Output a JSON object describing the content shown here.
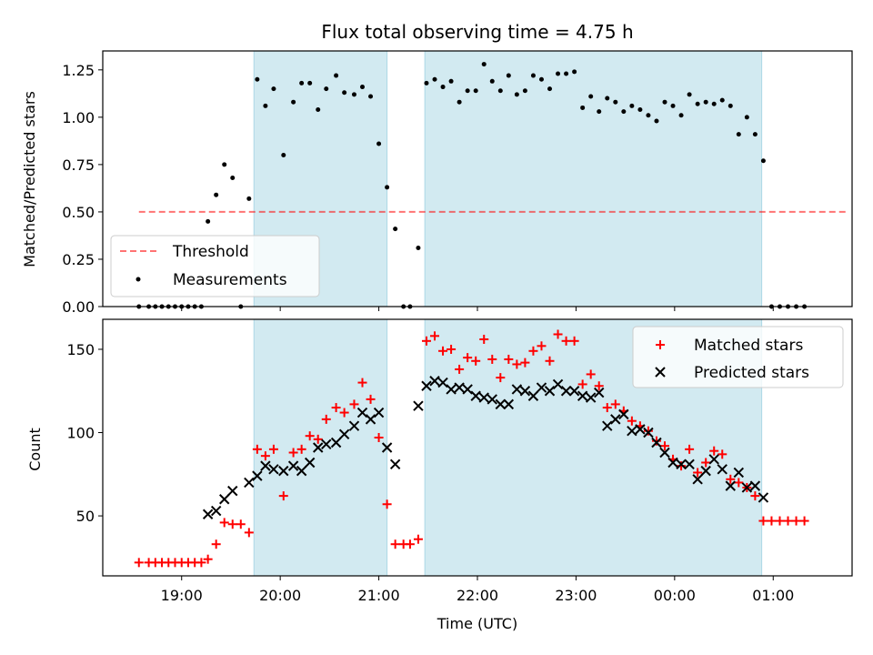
{
  "figure": {
    "title": "Flux total observing time = 4.75 h",
    "xlabel": "Time (UTC)"
  },
  "colors": {
    "shade": "#add8e6",
    "threshold": "#ff0000",
    "measurement": "#000000",
    "matched": "#ff0000",
    "predicted": "#000000"
  },
  "chart_data": [
    {
      "type": "scatter",
      "panel": "top",
      "ylabel": "Matched/Predicted stars",
      "xlim": [
        "18:12",
        "01:48"
      ],
      "ylim": [
        0,
        1.35
      ],
      "x_ticks": [
        "19:00",
        "20:00",
        "21:00",
        "22:00",
        "23:00",
        "00:00",
        "01:00"
      ],
      "y_ticks": [
        "0.00",
        "0.25",
        "0.50",
        "0.75",
        "1.00",
        "1.25"
      ],
      "shaded_intervals": [
        [
          "19:44",
          "21:05"
        ],
        [
          "21:28",
          "00:53"
        ]
      ],
      "legend_position": "lower-left",
      "threshold": {
        "name": "Threshold",
        "value": 0.5,
        "x_range": [
          "18:34",
          "01:44"
        ],
        "style": "dashed"
      },
      "series": [
        {
          "name": "Measurements",
          "points": [
            [
              "18:34",
              0.0
            ],
            [
              "18:40",
              0.0
            ],
            [
              "18:44",
              0.0
            ],
            [
              "18:48",
              0.0
            ],
            [
              "18:52",
              0.0
            ],
            [
              "18:56",
              0.0
            ],
            [
              "19:00",
              0.0
            ],
            [
              "19:04",
              0.0
            ],
            [
              "19:08",
              0.0
            ],
            [
              "19:12",
              0.0
            ],
            [
              "19:16",
              0.45
            ],
            [
              "19:21",
              0.59
            ],
            [
              "19:26",
              0.75
            ],
            [
              "19:31",
              0.68
            ],
            [
              "19:36",
              0.0
            ],
            [
              "19:41",
              0.57
            ],
            [
              "19:46",
              1.2
            ],
            [
              "19:51",
              1.06
            ],
            [
              "19:56",
              1.15
            ],
            [
              "20:02",
              0.8
            ],
            [
              "20:08",
              1.08
            ],
            [
              "20:13",
              1.18
            ],
            [
              "20:18",
              1.18
            ],
            [
              "20:23",
              1.04
            ],
            [
              "20:28",
              1.15
            ],
            [
              "20:34",
              1.22
            ],
            [
              "20:39",
              1.13
            ],
            [
              "20:45",
              1.12
            ],
            [
              "20:50",
              1.16
            ],
            [
              "20:55",
              1.11
            ],
            [
              "21:00",
              0.86
            ],
            [
              "21:05",
              0.63
            ],
            [
              "21:10",
              0.41
            ],
            [
              "21:15",
              0.0
            ],
            [
              "21:19",
              0.0
            ],
            [
              "21:24",
              0.31
            ],
            [
              "21:29",
              1.18
            ],
            [
              "21:34",
              1.2
            ],
            [
              "21:39",
              1.16
            ],
            [
              "21:44",
              1.19
            ],
            [
              "21:49",
              1.08
            ],
            [
              "21:54",
              1.14
            ],
            [
              "21:59",
              1.14
            ],
            [
              "22:04",
              1.28
            ],
            [
              "22:09",
              1.19
            ],
            [
              "22:14",
              1.14
            ],
            [
              "22:19",
              1.22
            ],
            [
              "22:24",
              1.12
            ],
            [
              "22:29",
              1.14
            ],
            [
              "22:34",
              1.22
            ],
            [
              "22:39",
              1.2
            ],
            [
              "22:44",
              1.15
            ],
            [
              "22:49",
              1.23
            ],
            [
              "22:54",
              1.23
            ],
            [
              "22:59",
              1.24
            ],
            [
              "23:04",
              1.05
            ],
            [
              "23:09",
              1.11
            ],
            [
              "23:14",
              1.03
            ],
            [
              "23:19",
              1.1
            ],
            [
              "23:24",
              1.08
            ],
            [
              "23:29",
              1.03
            ],
            [
              "23:34",
              1.06
            ],
            [
              "23:39",
              1.04
            ],
            [
              "23:44",
              1.01
            ],
            [
              "23:49",
              0.98
            ],
            [
              "23:54",
              1.08
            ],
            [
              "23:59",
              1.06
            ],
            [
              "00:04",
              1.01
            ],
            [
              "00:09",
              1.12
            ],
            [
              "00:14",
              1.07
            ],
            [
              "00:19",
              1.08
            ],
            [
              "00:24",
              1.07
            ],
            [
              "00:29",
              1.09
            ],
            [
              "00:34",
              1.06
            ],
            [
              "00:39",
              0.91
            ],
            [
              "00:44",
              1.0
            ],
            [
              "00:49",
              0.91
            ],
            [
              "00:54",
              0.77
            ],
            [
              "00:59",
              0.0
            ],
            [
              "01:04",
              0.0
            ],
            [
              "01:09",
              0.0
            ],
            [
              "01:14",
              0.0
            ],
            [
              "01:19",
              0.0
            ]
          ]
        }
      ]
    },
    {
      "type": "scatter",
      "panel": "bottom",
      "ylabel": "Count",
      "xlim": [
        "18:12",
        "01:48"
      ],
      "ylim": [
        14,
        168
      ],
      "x_ticks": [
        "19:00",
        "20:00",
        "21:00",
        "22:00",
        "23:00",
        "00:00",
        "01:00"
      ],
      "y_ticks": [
        "50",
        "100",
        "150"
      ],
      "shaded_intervals": [
        [
          "19:44",
          "21:05"
        ],
        [
          "21:28",
          "00:53"
        ]
      ],
      "legend_position": "upper-right",
      "series": [
        {
          "name": "Matched stars",
          "marker": "plus",
          "points": [
            [
              "18:34",
              22
            ],
            [
              "18:40",
              22
            ],
            [
              "18:44",
              22
            ],
            [
              "18:48",
              22
            ],
            [
              "18:52",
              22
            ],
            [
              "18:56",
              22
            ],
            [
              "19:00",
              22
            ],
            [
              "19:04",
              22
            ],
            [
              "19:08",
              22
            ],
            [
              "19:12",
              22
            ],
            [
              "19:16",
              24
            ],
            [
              "19:21",
              33
            ],
            [
              "19:26",
              46
            ],
            [
              "19:31",
              45
            ],
            [
              "19:36",
              45
            ],
            [
              "19:41",
              40
            ],
            [
              "19:46",
              90
            ],
            [
              "19:51",
              86
            ],
            [
              "19:56",
              90
            ],
            [
              "20:02",
              62
            ],
            [
              "20:08",
              88
            ],
            [
              "20:13",
              90
            ],
            [
              "20:18",
              98
            ],
            [
              "20:23",
              96
            ],
            [
              "20:28",
              108
            ],
            [
              "20:34",
              115
            ],
            [
              "20:39",
              112
            ],
            [
              "20:45",
              117
            ],
            [
              "20:50",
              130
            ],
            [
              "20:55",
              120
            ],
            [
              "21:00",
              97
            ],
            [
              "21:05",
              57
            ],
            [
              "21:10",
              33
            ],
            [
              "21:15",
              33
            ],
            [
              "21:19",
              33
            ],
            [
              "21:24",
              36
            ],
            [
              "21:29",
              155
            ],
            [
              "21:34",
              158
            ],
            [
              "21:39",
              149
            ],
            [
              "21:44",
              150
            ],
            [
              "21:49",
              138
            ],
            [
              "21:54",
              145
            ],
            [
              "21:59",
              143
            ],
            [
              "22:04",
              156
            ],
            [
              "22:09",
              144
            ],
            [
              "22:14",
              133
            ],
            [
              "22:19",
              144
            ],
            [
              "22:24",
              141
            ],
            [
              "22:29",
              142
            ],
            [
              "22:34",
              149
            ],
            [
              "22:39",
              152
            ],
            [
              "22:44",
              143
            ],
            [
              "22:49",
              159
            ],
            [
              "22:54",
              155
            ],
            [
              "22:59",
              155
            ],
            [
              "23:04",
              129
            ],
            [
              "23:09",
              135
            ],
            [
              "23:14",
              128
            ],
            [
              "23:19",
              115
            ],
            [
              "23:24",
              117
            ],
            [
              "23:29",
              113
            ],
            [
              "23:34",
              107
            ],
            [
              "23:39",
              104
            ],
            [
              "23:44",
              101
            ],
            [
              "23:49",
              95
            ],
            [
              "23:54",
              92
            ],
            [
              "23:59",
              84
            ],
            [
              "00:04",
              80
            ],
            [
              "00:09",
              90
            ],
            [
              "00:14",
              76
            ],
            [
              "00:19",
              82
            ],
            [
              "00:24",
              89
            ],
            [
              "00:29",
              87
            ],
            [
              "00:34",
              72
            ],
            [
              "00:39",
              70
            ],
            [
              "00:44",
              67
            ],
            [
              "00:49",
              62
            ],
            [
              "00:54",
              47
            ],
            [
              "00:59",
              47
            ],
            [
              "01:04",
              47
            ],
            [
              "01:09",
              47
            ],
            [
              "01:14",
              47
            ],
            [
              "01:19",
              47
            ]
          ]
        },
        {
          "name": "Predicted stars",
          "marker": "x",
          "points": [
            [
              "19:16",
              51
            ],
            [
              "19:21",
              53
            ],
            [
              "19:26",
              60
            ],
            [
              "19:31",
              65
            ],
            [
              "19:41",
              70
            ],
            [
              "19:46",
              74
            ],
            [
              "19:51",
              80
            ],
            [
              "19:56",
              78
            ],
            [
              "20:02",
              77
            ],
            [
              "20:08",
              80
            ],
            [
              "20:13",
              77
            ],
            [
              "20:18",
              82
            ],
            [
              "20:23",
              91
            ],
            [
              "20:28",
              93
            ],
            [
              "20:34",
              94
            ],
            [
              "20:39",
              99
            ],
            [
              "20:45",
              104
            ],
            [
              "20:50",
              112
            ],
            [
              "20:55",
              108
            ],
            [
              "21:00",
              112
            ],
            [
              "21:05",
              91
            ],
            [
              "21:10",
              81
            ],
            [
              "21:24",
              116
            ],
            [
              "21:29",
              128
            ],
            [
              "21:34",
              131
            ],
            [
              "21:39",
              130
            ],
            [
              "21:44",
              126
            ],
            [
              "21:49",
              127
            ],
            [
              "21:54",
              126
            ],
            [
              "21:59",
              122
            ],
            [
              "22:04",
              121
            ],
            [
              "22:09",
              120
            ],
            [
              "22:14",
              117
            ],
            [
              "22:19",
              117
            ],
            [
              "22:24",
              126
            ],
            [
              "22:29",
              125
            ],
            [
              "22:34",
              122
            ],
            [
              "22:39",
              127
            ],
            [
              "22:44",
              125
            ],
            [
              "22:49",
              129
            ],
            [
              "22:54",
              125
            ],
            [
              "22:59",
              125
            ],
            [
              "23:04",
              122
            ],
            [
              "23:09",
              121
            ],
            [
              "23:14",
              124
            ],
            [
              "23:19",
              104
            ],
            [
              "23:24",
              108
            ],
            [
              "23:29",
              111
            ],
            [
              "23:34",
              101
            ],
            [
              "23:39",
              102
            ],
            [
              "23:44",
              100
            ],
            [
              "23:49",
              94
            ],
            [
              "23:54",
              88
            ],
            [
              "23:59",
              82
            ],
            [
              "00:04",
              81
            ],
            [
              "00:09",
              81
            ],
            [
              "00:14",
              72
            ],
            [
              "00:19",
              77
            ],
            [
              "00:24",
              84
            ],
            [
              "00:29",
              78
            ],
            [
              "00:34",
              68
            ],
            [
              "00:39",
              76
            ],
            [
              "00:44",
              67
            ],
            [
              "00:49",
              68
            ],
            [
              "00:54",
              61
            ]
          ]
        }
      ]
    }
  ]
}
